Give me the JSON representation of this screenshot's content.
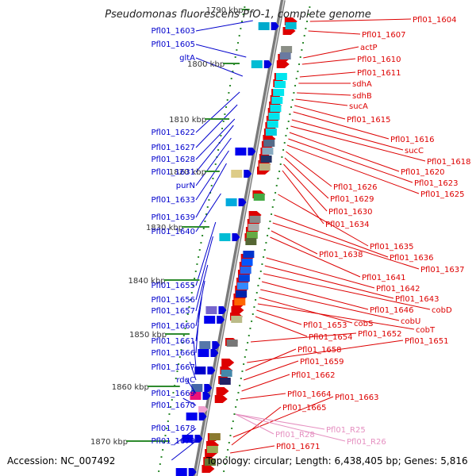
{
  "title": "Pseudomonas fluorescens PfO-1, complete genome",
  "footer": {
    "accession": "Accession: NC_007492",
    "topology": "Topology: circular; Length: 6,438,405 bp; Genes: 5,816"
  },
  "colors": {
    "left_label": "#0000cc",
    "right_label": "#dd0000",
    "rna_label": "#e58fc0",
    "tick": "#2e8b2e",
    "forward_gene": "#dd0000",
    "reverse_gene": "#0000dd",
    "rna_gene": "#f0a0d0"
  },
  "scale_labels": [
    "1790 kbp",
    "1800 kbp",
    "1810 kbp",
    "1820 kbp",
    "1830 kbp",
    "1840 kbp",
    "1850 kbp",
    "1860 kbp",
    "1870 kbp"
  ],
  "left_labels": [
    "Pfl01_1603",
    "Pfl01_1605",
    "gltA",
    "Pfl01_1622",
    "Pfl01_1627",
    "Pfl01_1628",
    "Pfl01_1631",
    "purN",
    "Pfl01_1633",
    "Pfl01_1639",
    "Pfl01_1640",
    "Pfl01_1655",
    "Pfl01_1656",
    "Pfl01_1657",
    "Pfl01_1660",
    "Pfl01_1661",
    "Pfl01_1666",
    "Pfl01_1667",
    "rdgC",
    "Pfl01_1669",
    "Pfl01_1670",
    "Pfl01_1678",
    "Pfl01_1679"
  ],
  "right_labels": [
    "Pfl01_1604",
    "Pfl01_1607",
    "actP",
    "Pfl01_1610",
    "Pfl01_1611",
    "sdhA",
    "sdhB",
    "sucA",
    "Pfl01_1615",
    "Pfl01_1616",
    "sucC",
    "Pfl01_1618",
    "Pfl01_1620",
    "Pfl01_1623",
    "Pfl01_1625",
    "Pfl01_1626",
    "Pfl01_1629",
    "Pfl01_1630",
    "Pfl01_1634",
    "Pfl01_1635",
    "Pfl01_1636",
    "Pfl01_1637",
    "Pfl01_1638",
    "Pfl01_1641",
    "Pfl01_1642",
    "Pfl01_1643",
    "cobD",
    "Pfl01_1646",
    "cobU",
    "cobS",
    "cobT",
    "Pfl01_1653",
    "Pfl01_1654",
    "Pfl01_1652",
    "Pfl01_1651",
    "Pfl01_1658",
    "Pfl01_1659",
    "Pfl01_1662",
    "Pfl01_1664",
    "Pfl01_1663",
    "Pfl01_1665",
    "Pfl01_1671"
  ],
  "rna_labels": [
    "Pfl01_R25",
    "Pfl01_R28",
    "Pfl01_R26"
  ]
}
